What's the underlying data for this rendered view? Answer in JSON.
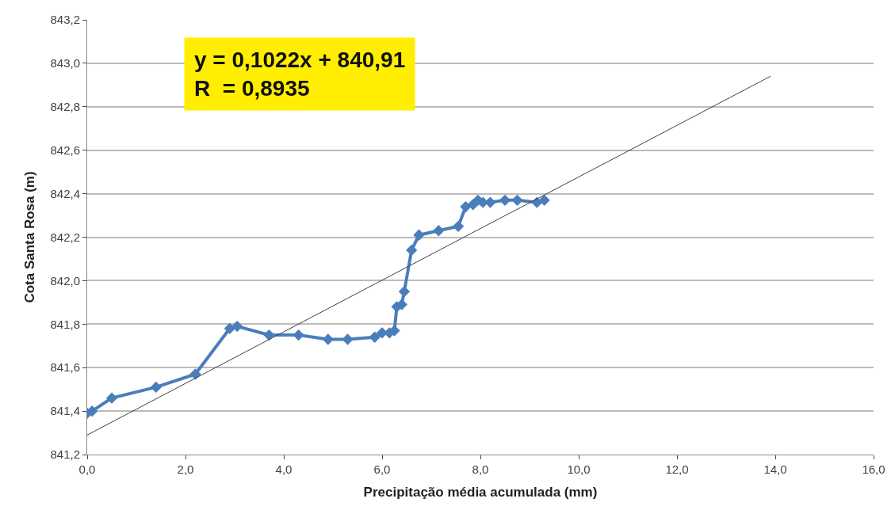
{
  "chart_data": {
    "type": "line",
    "xlabel": "Precipitação média acumulada (mm)",
    "ylabel": "Cota Santa Rosa (m)",
    "annotations": [
      "y = 0,1022x + 840,91\nR  = 0,8935"
    ],
    "series": [
      {
        "color": "#4a7ebb",
        "marker": "diamond",
        "x": [
          0,
          0.1,
          0.5,
          1.4,
          2.2,
          2.9,
          3.05,
          3.7,
          4.3,
          4.9,
          5.3,
          5.85,
          6.0,
          6.15,
          6.25,
          6.3,
          6.4,
          6.45,
          6.6,
          6.75,
          7.15,
          7.55,
          7.7,
          7.85,
          7.95,
          8.05,
          8.2,
          8.5,
          8.75,
          9.15,
          9.3
        ],
        "values": [
          841.39,
          841.4,
          841.46,
          841.51,
          841.57,
          841.78,
          841.79,
          841.75,
          841.75,
          841.73,
          841.73,
          841.74,
          841.76,
          841.76,
          841.77,
          841.88,
          841.89,
          841.95,
          842.14,
          842.21,
          842.23,
          842.25,
          842.34,
          842.35,
          842.37,
          842.36,
          842.36,
          842.37,
          842.37,
          842.36,
          842.37
        ]
      },
      {
        "color": "#404040",
        "marker": "none",
        "x": [
          0,
          13.9
        ],
        "values": [
          841.29,
          842.94
        ]
      }
    ],
    "xlim": [
      0,
      16
    ],
    "xticks": [
      {
        "value": 0,
        "label": "0,0"
      },
      {
        "value": 2,
        "label": "2,0"
      },
      {
        "value": 4,
        "label": "4,0"
      },
      {
        "value": 6,
        "label": "6,0"
      },
      {
        "value": 8,
        "label": "8,0"
      },
      {
        "value": 10,
        "label": "10,0"
      },
      {
        "value": 12,
        "label": "12,0"
      },
      {
        "value": 14,
        "label": "14,0"
      },
      {
        "value": 16,
        "label": "16,0"
      }
    ],
    "ylim": [
      841.2,
      843.2
    ],
    "yticks": [
      {
        "value": 841.2,
        "label": "841,2"
      },
      {
        "value": 841.4,
        "label": "841,4"
      },
      {
        "value": 841.6,
        "label": "841,6"
      },
      {
        "value": 841.8,
        "label": "841,8"
      },
      {
        "value": 842.0,
        "label": "842,0"
      },
      {
        "value": 842.2,
        "label": "842,2"
      },
      {
        "value": 842.4,
        "label": "842,4"
      },
      {
        "value": 842.6,
        "label": "842,6"
      },
      {
        "value": 842.8,
        "label": "842,8"
      },
      {
        "value": 843.0,
        "label": "843,0"
      },
      {
        "value": 843.2,
        "label": "843,2"
      }
    ],
    "grid": "y",
    "legend": false
  }
}
